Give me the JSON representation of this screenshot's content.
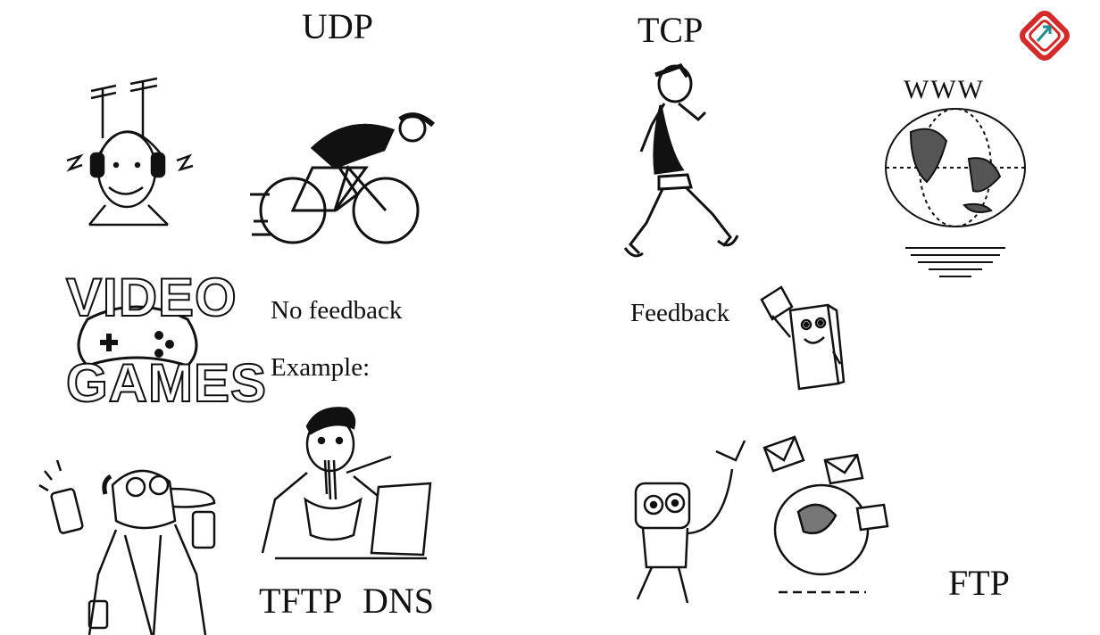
{
  "udp": {
    "title": "UDP",
    "feedback_label": "No feedback",
    "example_label": "Example:",
    "protocols": [
      "TFTP",
      "DNS"
    ],
    "video_games_lines": [
      "VIDEO",
      "GAMES"
    ]
  },
  "tcp": {
    "title": "TCP",
    "feedback_label": "Feedback",
    "globe_label": "WWW",
    "protocol": "FTP"
  },
  "colors": {
    "ink": "#111111",
    "logo_red": "#d42a2a",
    "logo_teal": "#1f8f8f"
  },
  "icons": [
    "logo-icon",
    "radio-headphones-man-icon",
    "cyclist-icon",
    "walker-icon",
    "globe-icon",
    "game-controller-icon",
    "paper-messenger-icon",
    "phones-man-icon",
    "noodle-laptop-man-icon",
    "robot-mail-icon"
  ]
}
